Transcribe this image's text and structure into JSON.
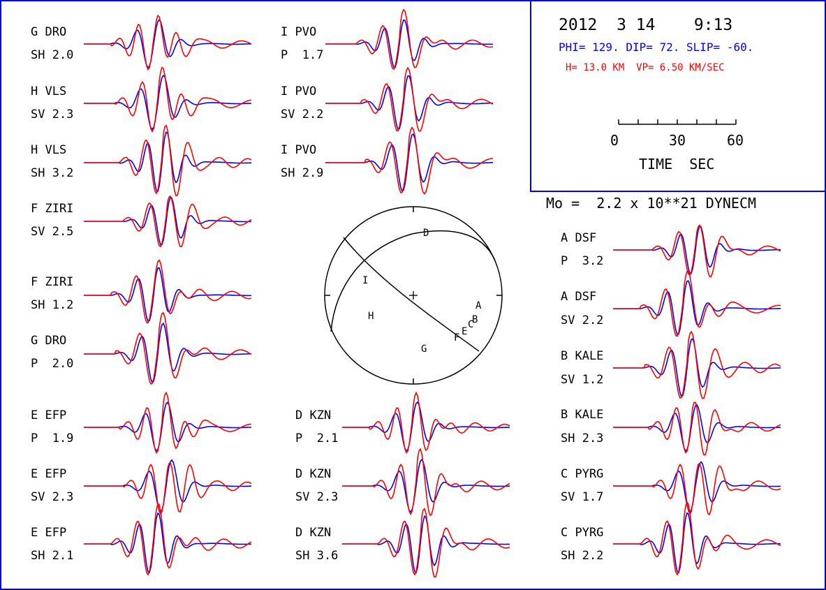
{
  "header": {
    "datetime": "2012  3 14    9:13",
    "mechanism": "PHI= 129. DIP= 72. SLIP= -60.",
    "depth_velocity": "H= 13.0 KM  VP= 6.50 KM/SEC",
    "moment": "Mo =  2.2 x 10**21 DYNECM"
  },
  "scale": {
    "tick_labels": [
      "0",
      "30",
      "60"
    ],
    "axis_label": "TIME  SEC"
  },
  "colors": {
    "observed": "#ff0000",
    "synthetic": "#0000ff",
    "frame": "#0000ff",
    "ink": "#000000"
  },
  "stations": [
    {
      "station": "G DRO",
      "phase": "SH 2.0"
    },
    {
      "station": "H VLS",
      "phase": "SV 2.3"
    },
    {
      "station": "H VLS",
      "phase": "SH 3.2"
    },
    {
      "station": "F ZIRI",
      "phase": "SV 2.5"
    },
    {
      "station": "F ZIRI",
      "phase": "SH 1.2"
    },
    {
      "station": "G DRO",
      "phase": "P  2.0"
    },
    {
      "station": "E EFP",
      "phase": "P  1.9"
    },
    {
      "station": "E EFP",
      "phase": "SV 2.3"
    },
    {
      "station": "E EFP",
      "phase": "SH 2.1"
    },
    {
      "station": "I PVO",
      "phase": "P  1.7"
    },
    {
      "station": "I PVO",
      "phase": "SV 2.2"
    },
    {
      "station": "I PVO",
      "phase": "SH 2.9"
    },
    {
      "station": "D KZN",
      "phase": "P  2.1"
    },
    {
      "station": "D KZN",
      "phase": "SV 2.3"
    },
    {
      "station": "D KZN",
      "phase": "SH 3.6"
    },
    {
      "station": "A DSF",
      "phase": "P  3.2"
    },
    {
      "station": "A DSF",
      "phase": "SV 2.2"
    },
    {
      "station": "B KALE",
      "phase": "SV 1.2"
    },
    {
      "station": "B KALE",
      "phase": "SH 2.3"
    },
    {
      "station": "C PYRG",
      "phase": "SV 1.7"
    },
    {
      "station": "C PYRG",
      "phase": "SH 2.2"
    }
  ],
  "focal_sphere": {
    "letters": [
      "D",
      "I",
      "A",
      "H",
      "B",
      "C",
      "E",
      "F",
      "G"
    ]
  }
}
